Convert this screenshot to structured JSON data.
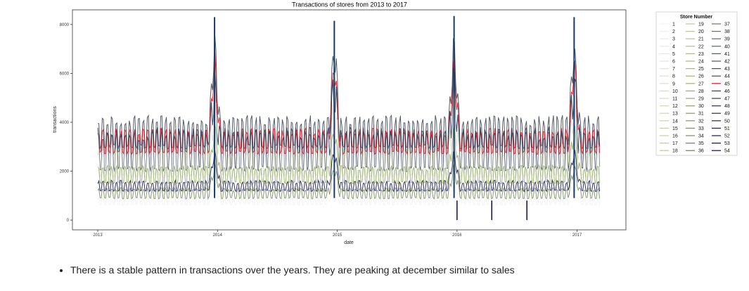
{
  "chart_data": {
    "type": "line",
    "title": "Transactions of stores from 2013 to 2017",
    "xlabel": "date",
    "ylabel": "transactions",
    "x_ticks": [
      "2013",
      "2014",
      "2015",
      "2016",
      "2017"
    ],
    "y_ticks": [
      0,
      2000,
      4000,
      6000,
      8000
    ],
    "xlim": [
      "2013-01-01",
      "2017-08-15"
    ],
    "ylim": [
      -400,
      8600
    ],
    "legend": {
      "title": "Store Number",
      "placement": "outside right",
      "entries": [
        "1",
        "2",
        "3",
        "4",
        "5",
        "6",
        "7",
        "8",
        "9",
        "10",
        "11",
        "12",
        "13",
        "14",
        "15",
        "16",
        "17",
        "18",
        "19",
        "20",
        "21",
        "22",
        "23",
        "24",
        "25",
        "26",
        "27",
        "28",
        "29",
        "30",
        "31",
        "32",
        "33",
        "34",
        "35",
        "36",
        "37",
        "38",
        "39",
        "40",
        "41",
        "42",
        "43",
        "44",
        "45",
        "46",
        "47",
        "48",
        "49",
        "50",
        "51",
        "52",
        "53",
        "54"
      ]
    },
    "series_palette_start": "#f2f2f2",
    "series_palette_mid": "#9ab26a",
    "series_palette_end": "#0b0b4f",
    "highlight_series": {
      "name": "45",
      "color": "#e8141e"
    },
    "bands": [
      {
        "store": "1",
        "base": 700,
        "amp": 200
      },
      {
        "store": "44",
        "base": 3300,
        "amp": 900
      },
      {
        "store": "45",
        "base": 3000,
        "amp": 700
      },
      {
        "store": "47",
        "base": 2500,
        "amp": 1200
      },
      {
        "store": "8",
        "base": 2100,
        "amp": 900
      },
      {
        "store": "28",
        "base": 1700,
        "amp": 500
      },
      {
        "store": "51",
        "base": 1300,
        "amp": 300
      },
      {
        "store": "33",
        "base": 1000,
        "amp": 300
      }
    ],
    "peaks": [
      {
        "x": "2013-12-23",
        "y": 8300
      },
      {
        "x": "2014-12-23",
        "y": 8150
      },
      {
        "x": "2015-12-23",
        "y": 8350
      },
      {
        "x": "2016-12-23",
        "y": 8300
      }
    ],
    "dips": [
      {
        "x": "2016-01-01",
        "y": 0
      },
      {
        "x": "2016-04-16",
        "y": 0
      },
      {
        "x": "2016-08-01",
        "y": 0
      }
    ]
  },
  "note": {
    "bullet_text": "There is a stable pattern in transactions over the years. They are peaking at december similar to sales"
  }
}
